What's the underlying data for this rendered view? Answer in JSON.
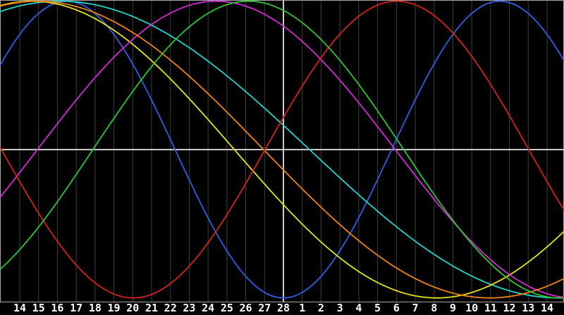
{
  "window": {
    "background": "#000000"
  },
  "chart_data": {
    "type": "line",
    "description": "Seven colored sine curves (biorhythm-style cycles) plotted over a 29-day span; a white horizontal midline marks zero and a white vertical line marks the day labeled 28.",
    "x_tick_labels": [
      "14",
      "15",
      "16",
      "17",
      "18",
      "19",
      "20",
      "21",
      "22",
      "23",
      "24",
      "25",
      "26",
      "27",
      "28",
      "1",
      "2",
      "3",
      "4",
      "5",
      "6",
      "7",
      "8",
      "9",
      "10",
      "11",
      "12",
      "13",
      "14"
    ],
    "today_label": "28",
    "today_tick_index": 14,
    "ylim": [
      -1,
      1
    ],
    "amplitude": 1.0,
    "grid": true,
    "legend": "none",
    "series": [
      {
        "name": "blue-23-day",
        "color": "#2e5fe6",
        "period_days": 23,
        "phase_deg_at_first_tick": 50.9,
        "value_at_today_line": -1.0
      },
      {
        "name": "cyan-53-day",
        "color": "#24d3cd",
        "period_days": 53,
        "phase_deg_at_first_tick": 75.5,
        "value_at_today_line": 0.16
      },
      {
        "name": "yellow-43-day",
        "color": "#e5e414",
        "period_days": 43,
        "phase_deg_at_first_tick": 84.6,
        "value_at_today_line": -0.37
      },
      {
        "name": "magenta-38-day",
        "color": "#d32bd3",
        "period_days": 38,
        "phase_deg_at_first_tick": 351.1,
        "value_at_today_line": 0.83
      },
      {
        "name": "orange-48-day",
        "color": "#ef8310",
        "period_days": 48,
        "phase_deg_at_first_tick": 82.9,
        "value_at_today_line": -0.14
      },
      {
        "name": "red-28-day",
        "color": "#d42318",
        "period_days": 28,
        "phase_deg_at_first_tick": 192.5,
        "value_at_today_line": 0.22
      },
      {
        "name": "green-33-day",
        "color": "#2dc62d",
        "period_days": 33,
        "phase_deg_at_first_tick": 317.6,
        "value_at_today_line": 0.94
      }
    ],
    "colors": {
      "gridline": "#3e3e3e",
      "frame": "#a8a8a8",
      "zero_line": "#ffffff",
      "today_line": "#ffffff",
      "tick_label": "#ffffff",
      "background": "#000000"
    }
  }
}
